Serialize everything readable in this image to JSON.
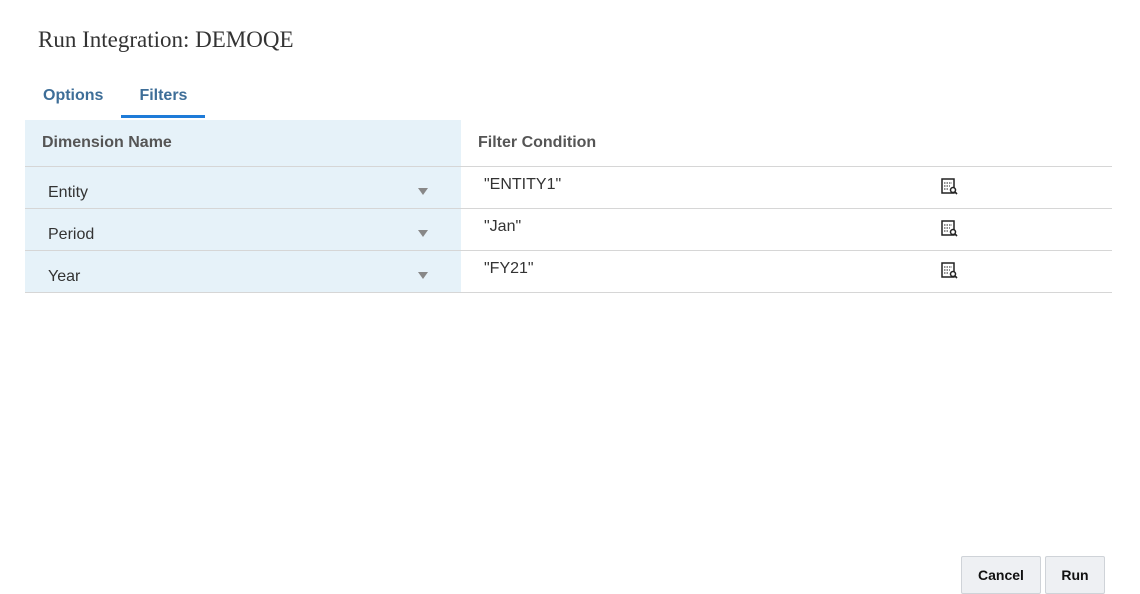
{
  "dialog": {
    "title": "Run Integration: DEMOQE"
  },
  "tabs": [
    {
      "label": "Options",
      "active": false
    },
    {
      "label": "Filters",
      "active": true
    }
  ],
  "table": {
    "headers": [
      "Dimension Name",
      "Filter Condition"
    ],
    "rows": [
      {
        "dimension": "Entity",
        "condition": "\"ENTITY1\"",
        "icon": "member-selector-icon"
      },
      {
        "dimension": "Period",
        "condition": "\"Jan\"",
        "icon": "member-selector-icon"
      },
      {
        "dimension": "Year",
        "condition": "\"FY21\"",
        "icon": "member-selector-icon"
      }
    ]
  },
  "buttons": {
    "cancel": "Cancel",
    "run": "Run"
  },
  "colors": {
    "tab_accent": "#1e7bd8",
    "tab_text": "#3e6e98",
    "dimension_column_bg": "#e6f2f9"
  }
}
